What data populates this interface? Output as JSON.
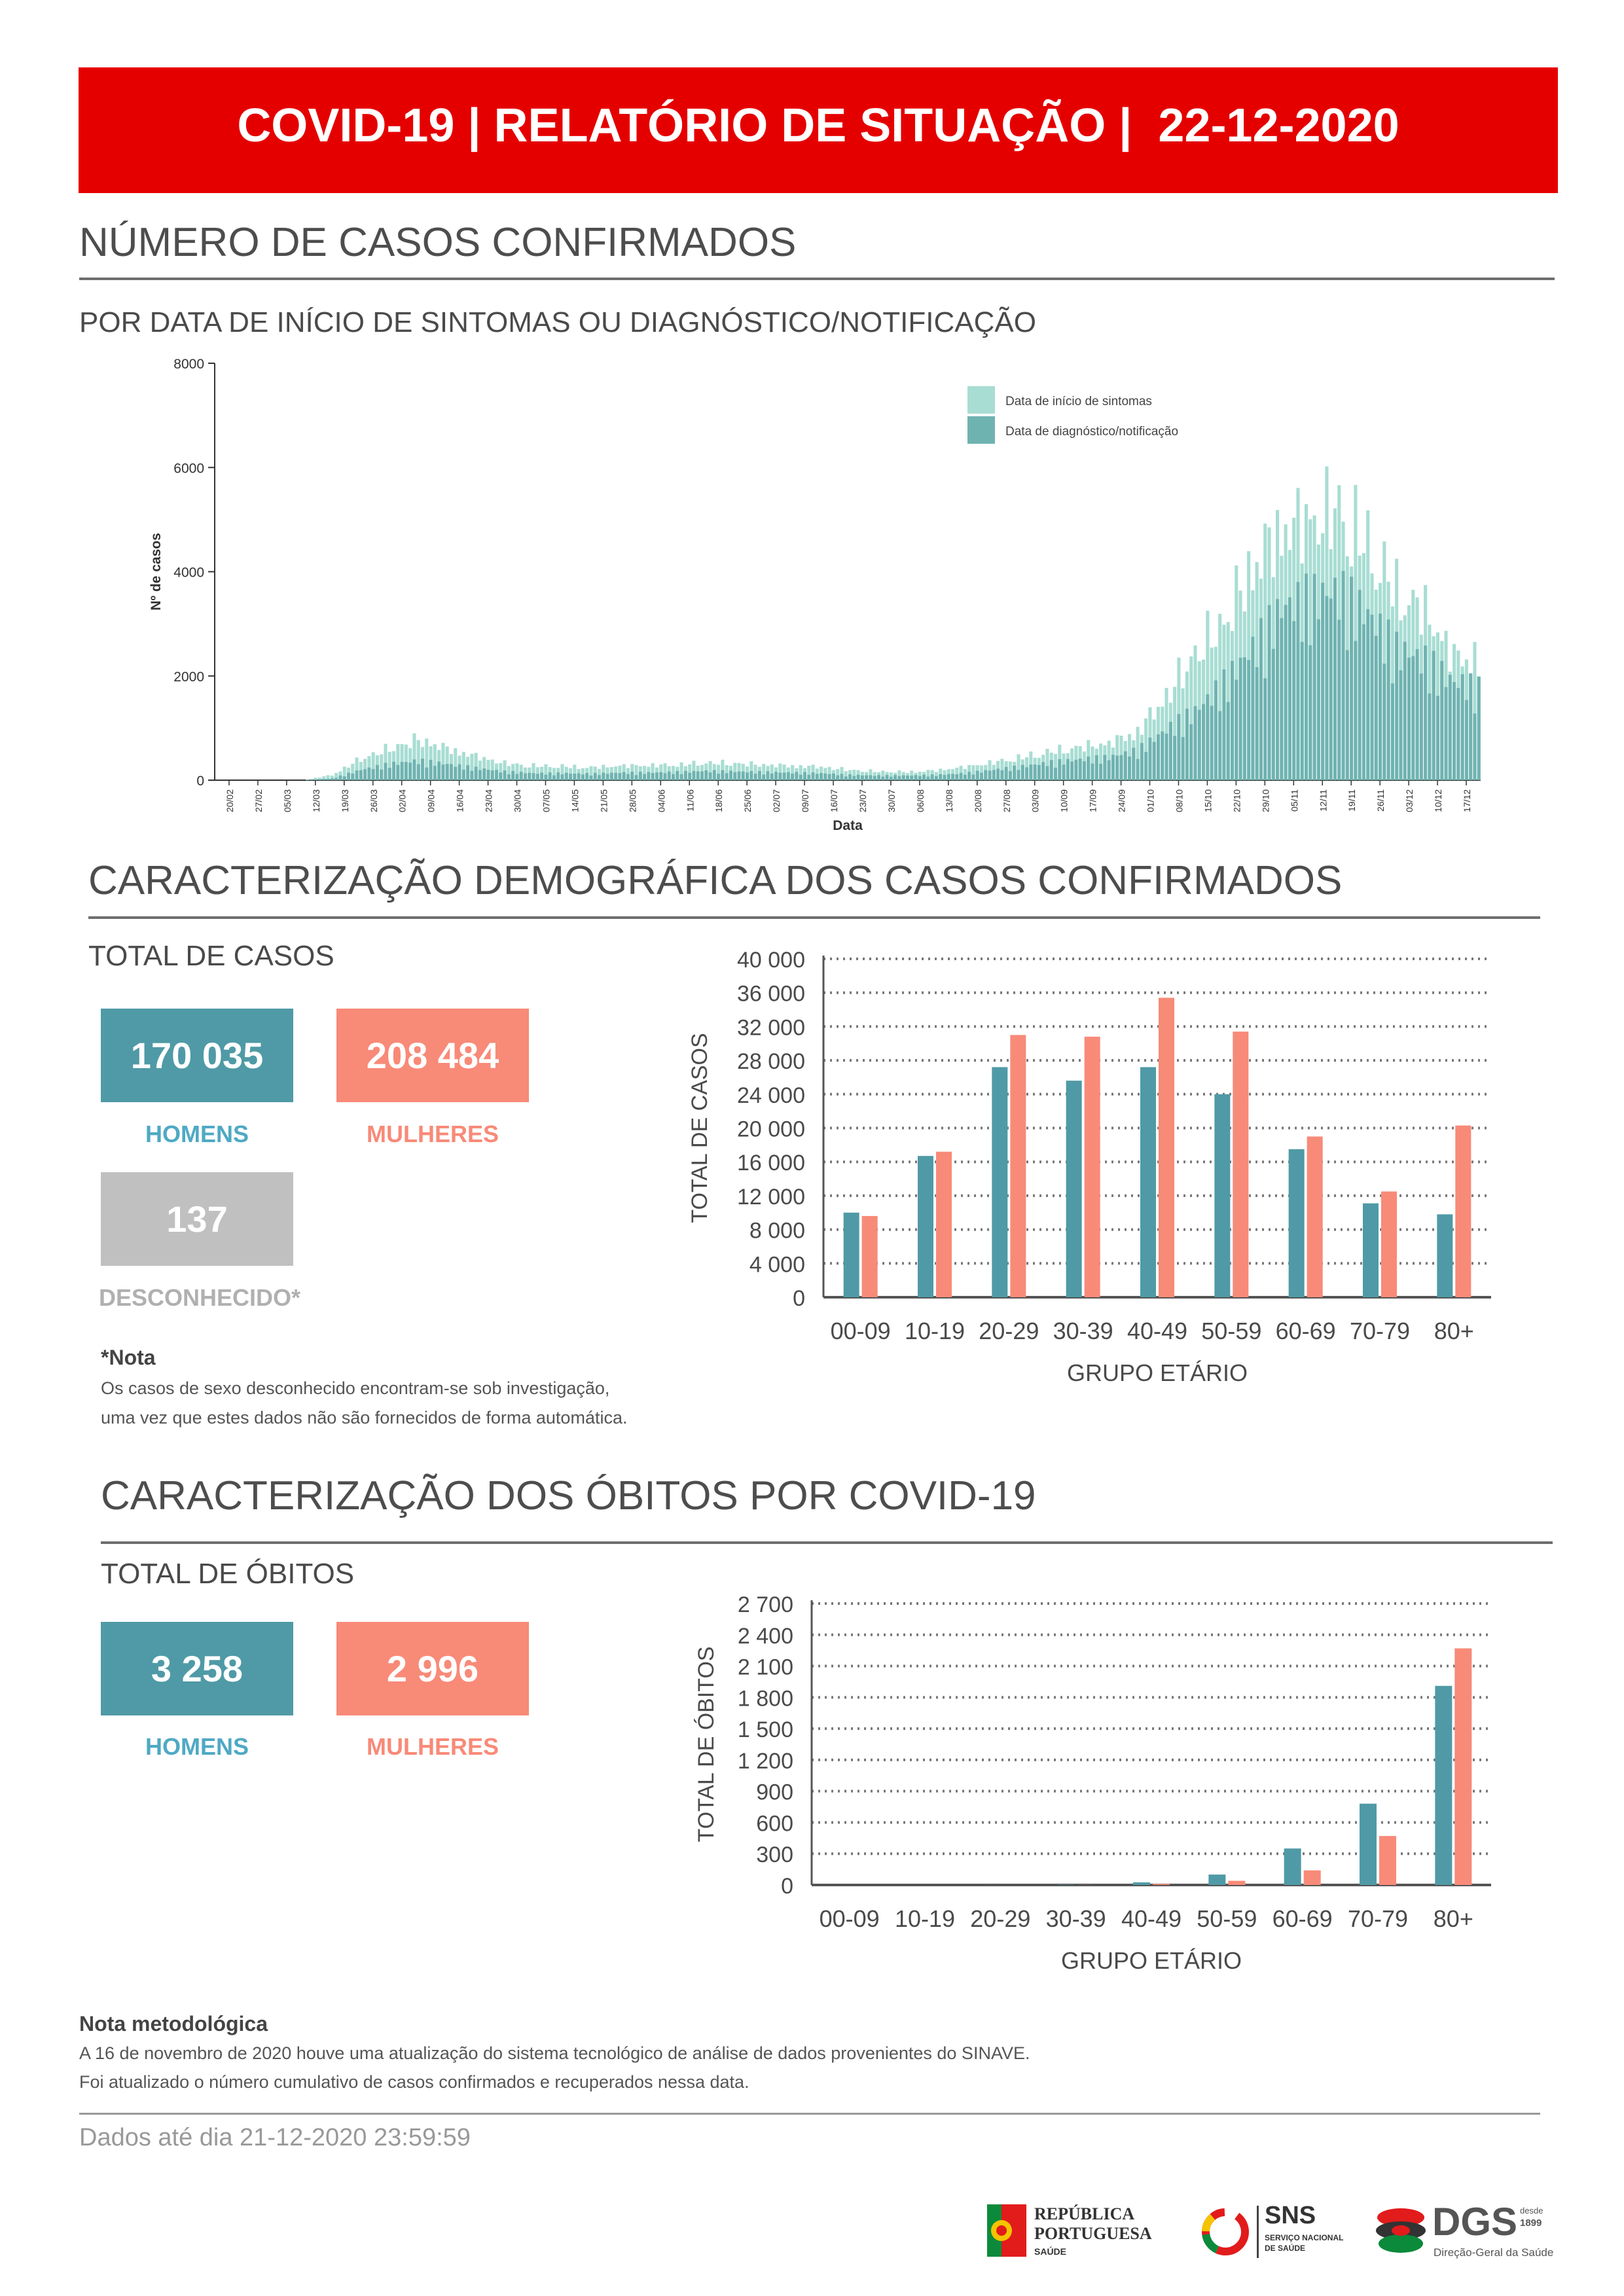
{
  "header": {
    "title": "COVID-19 | RELATÓRIO DE SITUAÇÃO |  22-12-2020"
  },
  "cases_section": {
    "title": "NÚMERO DE CASOS CONFIRMADOS",
    "subtitle": "POR DATA DE INÍCIO DE SINTOMAS OU DIAGNÓSTICO/NOTIFICAÇÃO"
  },
  "demo_section": {
    "title": "CARACTERIZAÇÃO DEMOGRÁFICA DOS CASOS CONFIRMADOS",
    "total_label": "TOTAL DE CASOS",
    "men_value": "170 035",
    "men_label": "HOMENS",
    "women_value": "208 484",
    "women_label": "MULHERES",
    "unknown_value": "137",
    "unknown_label": "DESCONHECIDO*",
    "note_title": "*Nota",
    "note_line1": "Os casos de sexo desconhecido encontram-se sob investigação,",
    "note_line2": "uma vez que estes dados não são fornecidos de forma automática."
  },
  "deaths_section": {
    "title": "CARACTERIZAÇÃO DOS ÓBITOS POR COVID-19",
    "total_label": "TOTAL DE ÓBITOS",
    "men_value": "3 258",
    "men_label": "HOMENS",
    "women_value": "2 996",
    "women_label": "MULHERES"
  },
  "footer": {
    "note_title": "Nota metodológica",
    "note_line1": "A 16 de novembro de 2020 houve uma atualização do sistema tecnológico de análise de dados provenientes do SINAVE.",
    "note_line2": "Foi atualizado o número cumulativo de casos confirmados e recuperados nessa data.",
    "data_until": "Dados até dia 21-12-2020 23:59:59"
  },
  "logos": {
    "rp_line1": "REPÚBLICA",
    "rp_line2": "PORTUGUESA",
    "rp_line3": "SAÚDE",
    "sns": "SNS",
    "sns_sub1": "SERVIÇO NACIONAL",
    "sns_sub2": "DE SAÚDE",
    "dgs": "DGS",
    "dgs_since1": "desde",
    "dgs_since2": "1899",
    "dgs_sub": "Direção-Geral da Saúde"
  },
  "colors": {
    "red": "#e50000",
    "teal": "#4f9aa6",
    "salmon": "#f88a78",
    "grey": "#c0c0c0",
    "light_teal": "#a8ddd3",
    "dark_teal": "#6fb3b1"
  },
  "chart_data": [
    {
      "type": "bar",
      "stacked": true,
      "xlabel": "Data",
      "ylabel": "Nº de casos",
      "ylim": [
        0,
        8000
      ],
      "yticks": [
        "0",
        "2000",
        "4000",
        "6000",
        "8000"
      ],
      "date_ticks": [
        "20/02",
        "27/02",
        "05/03",
        "12/03",
        "19/03",
        "26/03",
        "02/04",
        "09/04",
        "16/04",
        "23/04",
        "30/04",
        "07/05",
        "14/05",
        "21/05",
        "28/05",
        "04/06",
        "11/06",
        "18/06",
        "25/06",
        "02/07",
        "09/07",
        "16/07",
        "23/07",
        "30/07",
        "06/08",
        "13/08",
        "20/08",
        "27/08",
        "03/09",
        "10/09",
        "17/09",
        "24/09",
        "01/10",
        "08/10",
        "15/10",
        "22/10",
        "29/10",
        "05/11",
        "12/11",
        "19/11",
        "26/11",
        "03/12",
        "10/12",
        "17/12"
      ],
      "legend": [
        "Data de início de sintomas",
        "Data de diagnóstico/notificação"
      ],
      "legend_position": "top-right",
      "series": [
        {
          "name": "Data de início de sintomas",
          "weekly_values": [
            0,
            0,
            0,
            0,
            100,
            420,
            620,
            800,
            620,
            470,
            330,
            280,
            270,
            250,
            280,
            290,
            300,
            340,
            330,
            300,
            280,
            260,
            200,
            170,
            160,
            190,
            260,
            350,
            450,
            560,
            650,
            720,
            950,
            1650,
            2500,
            3100,
            4200,
            4900,
            5100,
            5300,
            4600,
            3700,
            3300,
            2400
          ]
        },
        {
          "name": "Data de diagnóstico/notificação",
          "weekly_values": [
            0,
            0,
            0,
            0,
            30,
            180,
            280,
            340,
            280,
            210,
            150,
            120,
            120,
            110,
            130,
            130,
            140,
            160,
            150,
            140,
            130,
            120,
            90,
            80,
            80,
            90,
            120,
            180,
            240,
            310,
            360,
            400,
            520,
            880,
            1200,
            1700,
            2300,
            3000,
            3200,
            3300,
            2900,
            2300,
            2100,
            1700
          ]
        }
      ]
    },
    {
      "type": "bar",
      "ylabel": "TOTAL DE CASOS",
      "xlabel": "GRUPO ETÁRIO",
      "ylim": [
        0,
        40000
      ],
      "yticks": [
        "0",
        "4 000",
        "8 000",
        "12 000",
        "16 000",
        "20 000",
        "24 000",
        "28 000",
        "32 000",
        "36 000",
        "40 000"
      ],
      "categories": [
        "00-09",
        "10-19",
        "20-29",
        "30-39",
        "40-49",
        "50-59",
        "60-69",
        "70-79",
        "80+"
      ],
      "series": [
        {
          "name": "HOMENS",
          "values": [
            10000,
            16700,
            27200,
            25600,
            27200,
            24000,
            17500,
            11100,
            9800
          ]
        },
        {
          "name": "MULHERES",
          "values": [
            9600,
            17200,
            31000,
            30800,
            35400,
            31400,
            19000,
            12500,
            20300
          ]
        }
      ]
    },
    {
      "type": "bar",
      "ylabel": "TOTAL DE ÓBITOS",
      "xlabel": "GRUPO ETÁRIO",
      "ylim": [
        0,
        2700
      ],
      "yticks": [
        "0",
        "300",
        "600",
        "900",
        "1 200",
        "1 500",
        "1 800",
        "2 100",
        "2 400",
        "2 700"
      ],
      "categories": [
        "00-09",
        "10-19",
        "20-29",
        "30-39",
        "40-49",
        "50-59",
        "60-69",
        "70-79",
        "80+"
      ],
      "series": [
        {
          "name": "HOMENS",
          "values": [
            0,
            0,
            1,
            3,
            25,
            100,
            350,
            780,
            1910
          ]
        },
        {
          "name": "MULHERES",
          "values": [
            0,
            0,
            0,
            1,
            10,
            40,
            140,
            470,
            2270
          ]
        }
      ]
    }
  ]
}
